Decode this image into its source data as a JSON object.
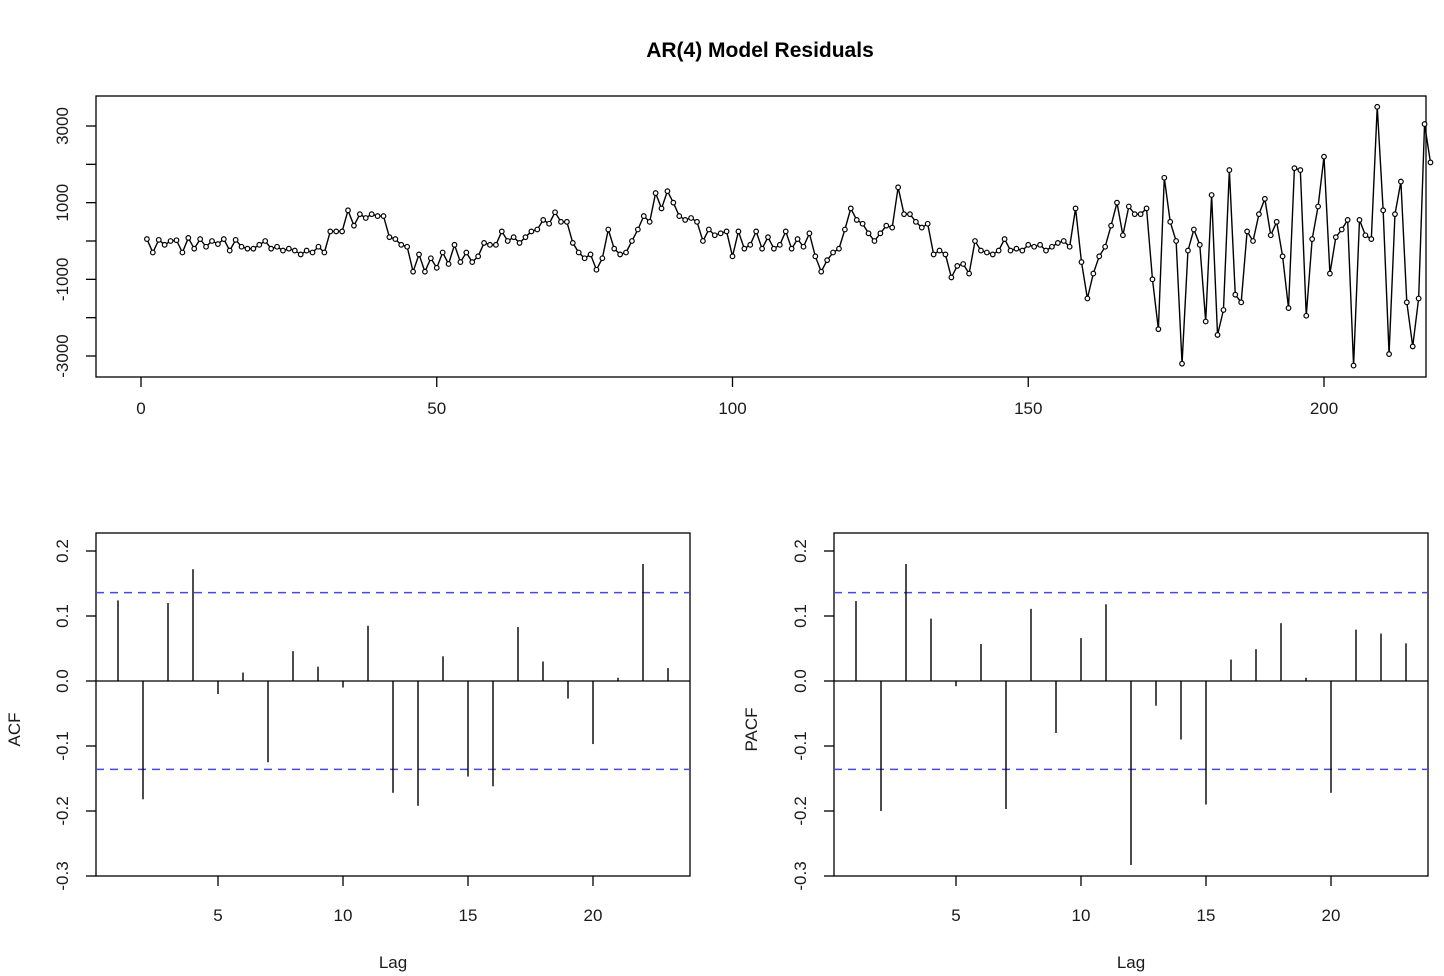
{
  "chart_data": [
    {
      "type": "line",
      "title": "AR(4) Model Residuals",
      "xlabel": "",
      "ylabel": "",
      "xlim": [
        0,
        212
      ],
      "ylim": [
        -3600,
        3700
      ],
      "x_ticks": [
        0,
        50,
        100,
        150,
        200
      ],
      "y_ticks": [
        -3000,
        -1000,
        1000,
        3000
      ],
      "grid": false,
      "marker": "open-circle",
      "series": [
        {
          "values": [
            50,
            -300,
            30,
            -100,
            0,
            20,
            -300,
            80,
            -200,
            50,
            -150,
            0,
            -80,
            50,
            -250,
            30,
            -150,
            -200,
            -200,
            -100,
            0,
            -200,
            -150,
            -250,
            -200,
            -250,
            -350,
            -250,
            -300,
            -150,
            -300,
            250,
            250,
            250,
            800,
            400,
            700,
            600,
            700,
            650,
            650,
            100,
            50,
            -100,
            -150,
            -800,
            -350,
            -800,
            -450,
            -700,
            -300,
            -600,
            -100,
            -550,
            -300,
            -550,
            -400,
            -50,
            -100,
            -100,
            250,
            0,
            100,
            -50,
            100,
            250,
            300,
            550,
            450,
            750,
            500,
            500,
            -50,
            -300,
            -450,
            -350,
            -750,
            -450,
            300,
            -200,
            -350,
            -300,
            0,
            300,
            650,
            500,
            1250,
            850,
            1300,
            1000,
            650,
            550,
            600,
            500,
            0,
            300,
            150,
            200,
            250,
            -400,
            250,
            -200,
            -100,
            250,
            -200,
            100,
            -200,
            -100,
            250,
            -200,
            50,
            -150,
            200,
            -400,
            -800,
            -500,
            -300,
            -200,
            300,
            850,
            550,
            450,
            200,
            0,
            200,
            400,
            350,
            1400,
            700,
            700,
            500,
            350,
            450,
            -350,
            -250,
            -350,
            -950,
            -650,
            -600,
            -850,
            0,
            -250,
            -300,
            -350,
            -250,
            50,
            -250,
            -200,
            -250,
            -100,
            -150,
            -100,
            -250,
            -150,
            -50,
            0,
            -150,
            850,
            -550,
            -1500,
            -850,
            -400,
            -150,
            400,
            1000,
            150,
            900,
            700,
            700,
            850,
            -1000,
            -2300,
            1650,
            500,
            0,
            -3200,
            -250,
            300,
            -100,
            -2100,
            1200,
            -2450,
            -1800,
            1850,
            -1400,
            -1600,
            250,
            0,
            700,
            1100,
            150,
            500,
            -400,
            -1750,
            1900,
            1850,
            -1950,
            50,
            900,
            2200,
            -850,
            100,
            300,
            550,
            -3250,
            550,
            150,
            50,
            3500,
            800,
            -2950,
            700,
            1550,
            -1600,
            -2750,
            -1500,
            3050,
            2050
          ]
        }
      ]
    },
    {
      "type": "bar",
      "title": "",
      "xlabel": "Lag",
      "ylabel": "ACF",
      "xlim": [
        0,
        24
      ],
      "ylim": [
        -0.3,
        0.22
      ],
      "x_ticks": [
        5,
        10,
        15,
        20
      ],
      "y_ticks": [
        -0.3,
        -0.2,
        -0.1,
        0.0,
        0.1,
        0.2
      ],
      "confidence_bounds": [
        -0.136,
        0.136
      ],
      "grid": false,
      "lags": [
        1,
        2,
        3,
        4,
        5,
        6,
        7,
        8,
        9,
        10,
        11,
        12,
        13,
        14,
        15,
        16,
        17,
        18,
        19,
        20,
        21,
        22,
        23
      ],
      "values": [
        0.124,
        -0.182,
        0.12,
        0.172,
        -0.02,
        0.013,
        -0.125,
        0.046,
        0.022,
        -0.01,
        0.085,
        -0.172,
        -0.192,
        0.038,
        -0.147,
        -0.162,
        0.083,
        0.03,
        -0.027,
        -0.097,
        0.005,
        0.18,
        0.02
      ]
    },
    {
      "type": "bar",
      "title": "",
      "xlabel": "Lag",
      "ylabel": "PACF",
      "xlim": [
        0,
        24
      ],
      "ylim": [
        -0.3,
        0.22
      ],
      "x_ticks": [
        5,
        10,
        15,
        20
      ],
      "y_ticks": [
        -0.3,
        -0.2,
        -0.1,
        0.0,
        0.1,
        0.2
      ],
      "confidence_bounds": [
        -0.136,
        0.136
      ],
      "grid": false,
      "lags": [
        1,
        2,
        3,
        4,
        5,
        6,
        7,
        8,
        9,
        10,
        11,
        12,
        13,
        14,
        15,
        16,
        17,
        18,
        19,
        20,
        21,
        22,
        23
      ],
      "values": [
        0.123,
        -0.2,
        0.18,
        0.096,
        -0.008,
        0.057,
        -0.197,
        0.111,
        -0.08,
        0.066,
        0.118,
        -0.283,
        -0.038,
        -0.09,
        -0.19,
        0.033,
        0.049,
        0.089,
        0.005,
        -0.172,
        0.079,
        0.073,
        0.058
      ]
    }
  ],
  "colors": {
    "line": "#000000",
    "bars": "#000000",
    "confidence": "#4a4ad6"
  }
}
